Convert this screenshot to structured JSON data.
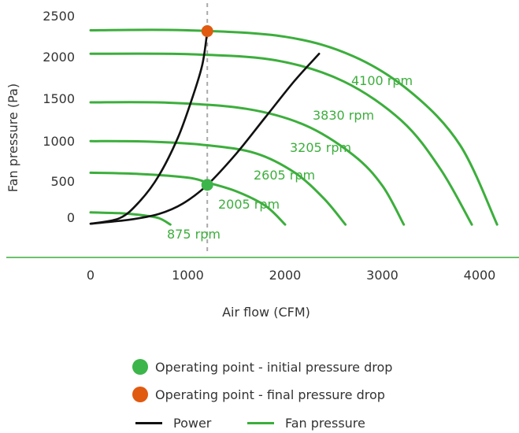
{
  "chart_data": {
    "type": "line",
    "xlabel": "Air flow (CFM)",
    "ylabel": "Fan pressure (Pa)",
    "xlim": [
      -150,
      4450
    ],
    "ylim": [
      -300,
      2600
    ],
    "x_ticks": [
      "0",
      "1000",
      "2000",
      "3000",
      "4000"
    ],
    "x_tick_values": [
      0,
      1000,
      2000,
      3000,
      4000
    ],
    "y_ticks": [
      "2500",
      "2000",
      "1500",
      "1000",
      "500",
      "0"
    ],
    "y_tick_values": [
      2500,
      2000,
      1500,
      1000,
      500,
      0
    ],
    "grid": false,
    "operating_airflow": 1200,
    "fan_curves": [
      {
        "name": "875 rpm",
        "label": "875 rpm",
        "points": [
          [
            0,
            70
          ],
          [
            300,
            60
          ],
          [
            500,
            40
          ],
          [
            700,
            0
          ],
          [
            820,
            -80
          ]
        ]
      },
      {
        "name": "2005 rpm",
        "label": "2005 rpm",
        "points": [
          [
            0,
            560
          ],
          [
            500,
            545
          ],
          [
            1000,
            500
          ],
          [
            1200,
            440
          ],
          [
            1500,
            330
          ],
          [
            1800,
            150
          ],
          [
            2000,
            -80
          ]
        ]
      },
      {
        "name": "2605 rpm",
        "label": "2605 rpm",
        "points": [
          [
            0,
            950
          ],
          [
            600,
            945
          ],
          [
            1200,
            900
          ],
          [
            1700,
            800
          ],
          [
            2100,
            560
          ],
          [
            2400,
            240
          ],
          [
            2620,
            -80
          ]
        ]
      },
      {
        "name": "3205 rpm",
        "label": "3205 rpm",
        "points": [
          [
            0,
            1430
          ],
          [
            800,
            1425
          ],
          [
            1600,
            1350
          ],
          [
            2200,
            1150
          ],
          [
            2700,
            780
          ],
          [
            3000,
            400
          ],
          [
            3220,
            -80
          ]
        ]
      },
      {
        "name": "3830 rpm",
        "label": "3830 rpm",
        "points": [
          [
            0,
            2030
          ],
          [
            1000,
            2025
          ],
          [
            1900,
            1950
          ],
          [
            2600,
            1690
          ],
          [
            3200,
            1200
          ],
          [
            3600,
            600
          ],
          [
            3920,
            -80
          ]
        ]
      },
      {
        "name": "4100 rpm",
        "label": "4100 rpm",
        "points": [
          [
            0,
            2320
          ],
          [
            1000,
            2320
          ],
          [
            2000,
            2240
          ],
          [
            2700,
            2000
          ],
          [
            3300,
            1550
          ],
          [
            3800,
            900
          ],
          [
            4180,
            -80
          ]
        ]
      }
    ],
    "power_curves": [
      {
        "name": "Power",
        "points": [
          [
            0,
            -70
          ],
          [
            300,
            0
          ],
          [
            500,
            200
          ],
          [
            700,
            520
          ],
          [
            900,
            1000
          ],
          [
            1050,
            1500
          ],
          [
            1150,
            1900
          ],
          [
            1200,
            2310
          ]
        ]
      },
      {
        "name": "Power",
        "points": [
          [
            0,
            -70
          ],
          [
            400,
            -20
          ],
          [
            700,
            50
          ],
          [
            950,
            180
          ],
          [
            1200,
            410
          ],
          [
            1500,
            800
          ],
          [
            1800,
            1250
          ],
          [
            2100,
            1700
          ],
          [
            2350,
            2030
          ]
        ]
      }
    ],
    "operating_points": [
      {
        "label": "Operating point - initial pressure drop",
        "x": 1200,
        "y": 410,
        "color": "#3cb54a"
      },
      {
        "label": "Operating point - final pressure drop",
        "x": 1200,
        "y": 2310,
        "color": "#e05a10"
      }
    ],
    "colors": {
      "fan": "#3cae3c",
      "power": "#111111",
      "initial": "#3cb54a",
      "final": "#e05a10",
      "dashed": "#aaaaaa"
    },
    "legend": {
      "initial": "Operating point - initial pressure drop",
      "final": "Operating point - final pressure drop",
      "power": "Power",
      "fan": "Fan pressure"
    }
  }
}
